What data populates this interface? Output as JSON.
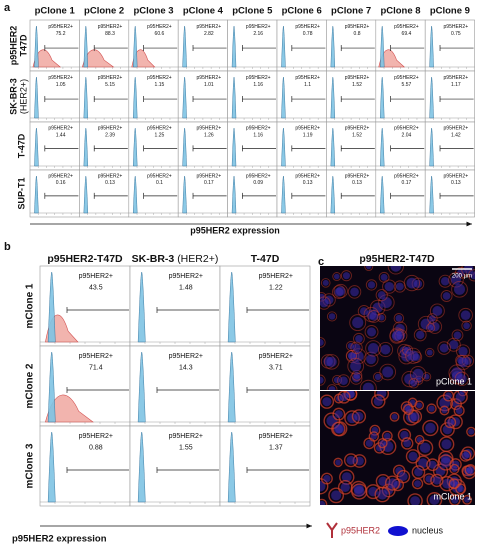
{
  "panel_a": {
    "label": "a",
    "columns": [
      "pClone 1",
      "pClone 2",
      "pClone 3",
      "pClone 4",
      "pClone 5",
      "pClone 6",
      "pClone 7",
      "pClone 8",
      "pClone 9"
    ],
    "gate_label": "p95HER2+",
    "rows": [
      {
        "label": [
          "p95HER2",
          "T47D"
        ],
        "values": [
          75.2,
          88.3,
          60.6,
          2.82,
          2.16,
          0.78,
          0.8,
          69.4,
          0.75
        ]
      },
      {
        "label": [
          "SK-BR-3",
          "(HER2+)"
        ],
        "values": [
          1.05,
          5.15,
          1.15,
          1.01,
          1.16,
          1.1,
          1.52,
          5.57,
          1.17
        ]
      },
      {
        "label": [
          "T-47D"
        ],
        "values": [
          1.44,
          2.39,
          1.25,
          1.26,
          1.16,
          1.19,
          1.52,
          2.04,
          1.42
        ]
      },
      {
        "label": [
          "SUP-T1"
        ],
        "values": [
          0.16,
          0.13,
          0.1,
          0.17,
          0.09,
          0.13,
          0.13,
          0.17,
          0.13
        ]
      }
    ],
    "x_label": "p95HER2 expression"
  },
  "panel_b": {
    "label": "b",
    "columns": [
      {
        "name": "p95HER2-T47D"
      },
      {
        "name": "SK-BR-3",
        "note": "(HER2+)"
      },
      {
        "name": "T-47D"
      }
    ],
    "gate_label": "p95HER2+",
    "rows": [
      {
        "label": "mClone 1",
        "values": [
          43.5,
          1.48,
          1.22
        ]
      },
      {
        "label": "mClone 2",
        "values": [
          71.4,
          14.3,
          3.71
        ]
      },
      {
        "label": "mClone 3",
        "values": [
          0.88,
          1.55,
          1.37
        ]
      }
    ],
    "x_label": "p95HER2 expression"
  },
  "panel_c": {
    "label": "c",
    "title": "p95HER2-T47D",
    "scale_bar": "200 µm",
    "images": [
      "pClone 1",
      "mClone 1"
    ],
    "legend": [
      "p95HER2",
      "nucleus"
    ]
  }
}
